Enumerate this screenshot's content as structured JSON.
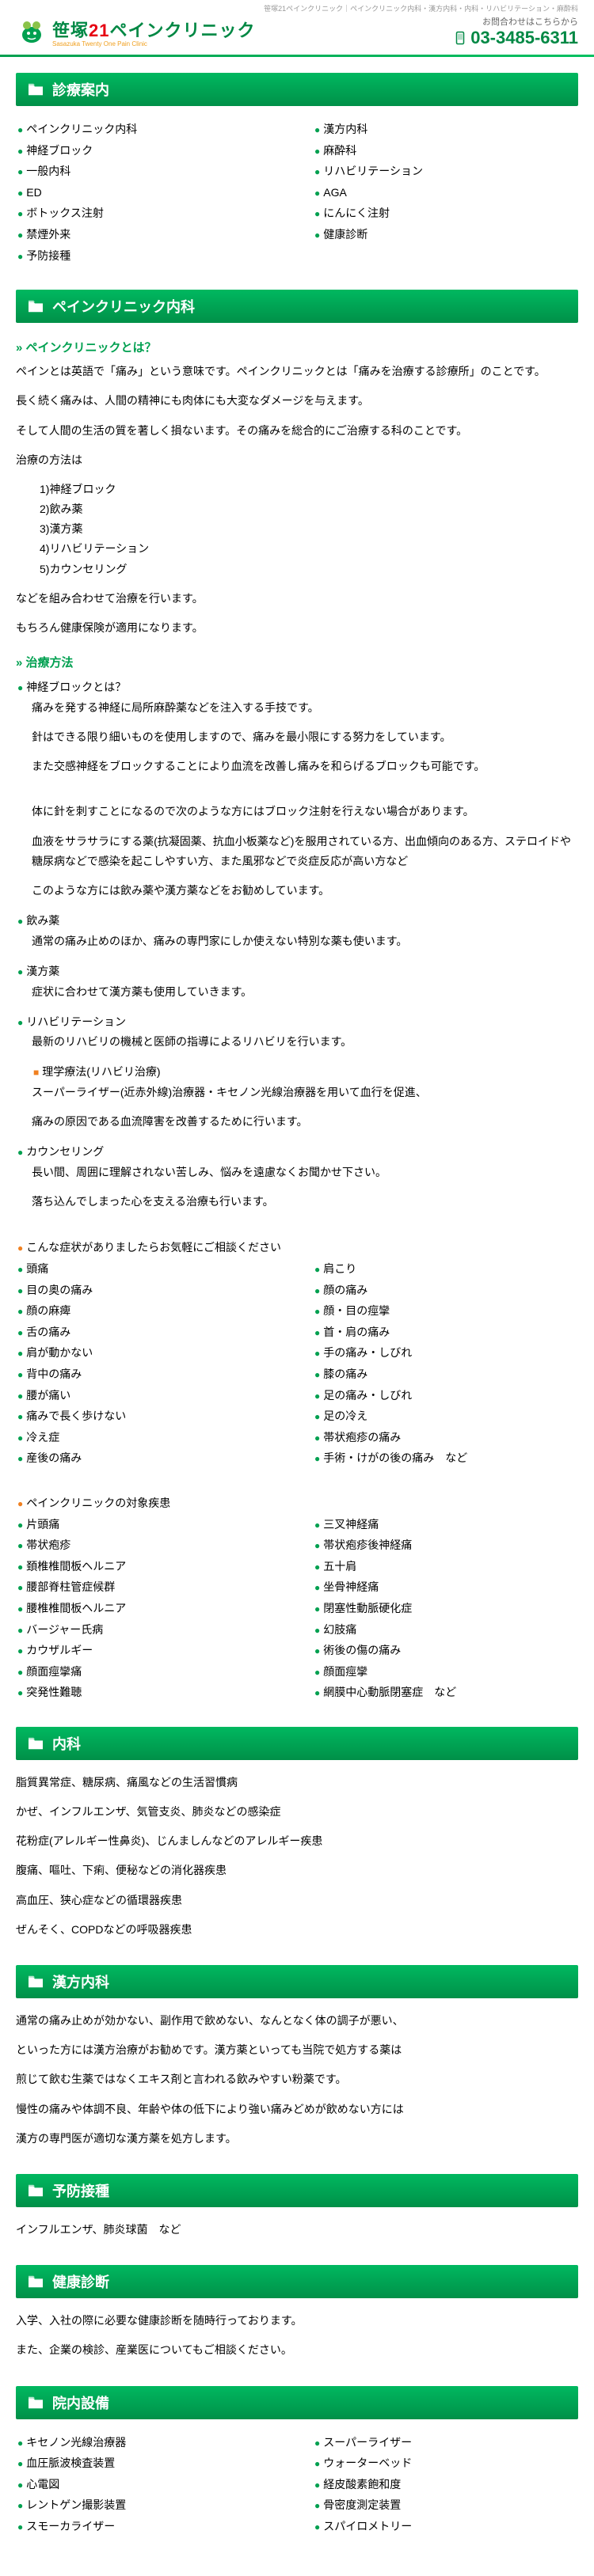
{
  "colors": {
    "primary": "#00a050",
    "primary_dark": "#008844",
    "accent_red": "#e60012",
    "accent_orange": "#f08020",
    "gradient_start": "#00b860",
    "gradient_end": "#009048"
  },
  "topbar": "笹塚21ペインクリニック｜ペインクリニック内科・漢方内科・内科・リハビリテーション・麻酔科",
  "logo": {
    "text_pre": "笹塚",
    "text_num": "21",
    "text_post": "ペインクリニック",
    "subtitle": "Sasazuka Twenty One Pain Clinic"
  },
  "contact": {
    "label": "お問合わせはこちらから",
    "phone": "03-3485-6311"
  },
  "sections": {
    "guide": {
      "title": "診療案内",
      "left": [
        "ペインクリニック内科",
        "神経ブロック",
        "一般内科",
        "ED",
        "ボトックス注射",
        "禁煙外来",
        "予防接種"
      ],
      "right": [
        "漢方内科",
        "麻酔科",
        "リハビリテーション",
        "AGA",
        "にんにく注射",
        "健康診断"
      ]
    },
    "pain": {
      "title": "ペインクリニック内科",
      "sub1": "ペインクリニックとは？",
      "intro1": "ペインとは英語で「痛み」という意味です。ペインクリニックとは「痛みを治療する診療所」のことです。",
      "intro2": "長く続く痛みは、人間の精神にも肉体にも大変なダメージを与えます。",
      "intro3": "そして人間の生活の質を著しく損ないます。その痛みを総合的にご治療する科のことです。",
      "method_label": "治療の方法は",
      "methods": [
        "1)神経ブロック",
        "2)飲み薬",
        "3)漢方薬",
        "4)リハビリテーション",
        "5)カウンセリング"
      ],
      "method_after1": "などを組み合わせて治療を行います。",
      "method_after2": "もちろん健康保険が適用になります。",
      "sub2": "治療方法",
      "block_title": "神経ブロックとは？",
      "block_lines": [
        "痛みを発する神経に局所麻酔薬などを注入する手技です。",
        "針はできる限り細いものを使用しますので、痛みを最小限にする努力をしています。",
        "また交感神経をブロックすることにより血流を改善し痛みを和らげるブロックも可能です。"
      ],
      "block_note1": "体に針を刺すことになるので次のような方にはブロック注射を行えない場合があります。",
      "block_note2": "血液をサラサラにする薬(抗凝固薬、抗血小板薬など)を服用されている方、出血傾向のある方、ステロイドや糖尿病などで感染を起こしやすい方、また風邪などで炎症反応が高い方など",
      "block_note3": "このような方には飲み薬や漢方薬などをお勧めしています。",
      "medicine_title": "飲み薬",
      "medicine_text": "通常の痛み止めのほか、痛みの専門家にしか使えない特別な薬も使います。",
      "kampo_title": "漢方薬",
      "kampo_text": "症状に合わせて漢方薬も使用していきます。",
      "rehab_title": "リハビリテーション",
      "rehab_text": "最新のリハビリの機械と医師の指導によるリハビリを行います。",
      "rehab_sub": "理学療法(リハビリ治療)",
      "rehab_detail1": "スーパーライザー(近赤外線)治療器・キセノン光線治療器を用いて血行を促進、",
      "rehab_detail2": "痛みの原因である血流障害を改善するために行います。",
      "counsel_title": "カウンセリング",
      "counsel_text1": "長い間、周囲に理解されない苦しみ、悩みを遠慮なくお聞かせ下さい。",
      "counsel_text2": "落ち込んでしまった心を支える治療も行います。",
      "symptoms_title": "こんな症状がありましたらお気軽にご相談ください",
      "symptoms_left": [
        "頭痛",
        "目の奥の痛み",
        "顔の麻痺",
        "舌の痛み",
        "肩が動かない",
        "背中の痛み",
        "腰が痛い",
        "痛みで長く歩けない",
        "冷え症",
        "産後の痛み"
      ],
      "symptoms_right": [
        "肩こり",
        "顔の痛み",
        "顔・目の痙攣",
        "首・肩の痛み",
        "手の痛み・しびれ",
        "膝の痛み",
        "足の痛み・しびれ",
        "足の冷え",
        "帯状疱疹の痛み",
        "手術・けがの後の痛み　など"
      ],
      "diseases_title": "ペインクリニックの対象疾患",
      "diseases_left": [
        "片頭痛",
        "帯状疱疹",
        "頚椎椎間板ヘルニア",
        "腰部脊柱管症候群",
        "腰椎椎間板ヘルニア",
        "バージャー氏病",
        "カウザルギー",
        "顔面痙攣痛",
        "突発性難聴"
      ],
      "diseases_right": [
        "三叉神経痛",
        "帯状疱疹後神経痛",
        "五十肩",
        "坐骨神経痛",
        "閉塞性動脈硬化症",
        "幻肢痛",
        "術後の傷の痛み",
        "顔面痙攣",
        "網膜中心動脈閉塞症　など"
      ]
    },
    "naika": {
      "title": "内科",
      "lines": [
        "脂質異常症、糖尿病、痛風などの生活習慣病",
        "かぜ、インフルエンザ、気管支炎、肺炎などの感染症",
        "花粉症(アレルギー性鼻炎)、じんましんなどのアレルギー疾患",
        "腹痛、嘔吐、下痢、便秘などの消化器疾患",
        "高血圧、狭心症などの循環器疾患",
        "ぜんそく、COPDなどの呼吸器疾患"
      ]
    },
    "kampo": {
      "title": "漢方内科",
      "lines": [
        "通常の痛み止めが効かない、副作用で飲めない、なんとなく体の調子が悪い、",
        "といった方には漢方治療がお勧めです。漢方薬といっても当院で処方する薬は",
        "煎じて飲む生薬ではなくエキス剤と言われる飲みやすい粉薬です。",
        "慢性の痛みや体調不良、年齢や体の低下により強い痛みどめが飲めない方には",
        "漢方の専門医が適切な漢方薬を処方します。"
      ]
    },
    "vaccine": {
      "title": "予防接種",
      "text": "インフルエンザ、肺炎球菌　など"
    },
    "health": {
      "title": "健康診断",
      "text1": "入学、入社の際に必要な健康診断を随時行っております。",
      "text2": "また、企業の検診、産業医についてもご相談ください。"
    },
    "facility": {
      "title": "院内設備",
      "left": [
        "キセノン光線治療器",
        "血圧脈波検査装置",
        "心電図",
        "レントゲン撮影装置",
        "スモーカライザー"
      ],
      "right": [
        "スーパーライザー",
        "ウォーターベッド",
        "経皮酸素飽和度",
        "骨密度測定装置",
        "スパイロメトリー"
      ]
    }
  }
}
